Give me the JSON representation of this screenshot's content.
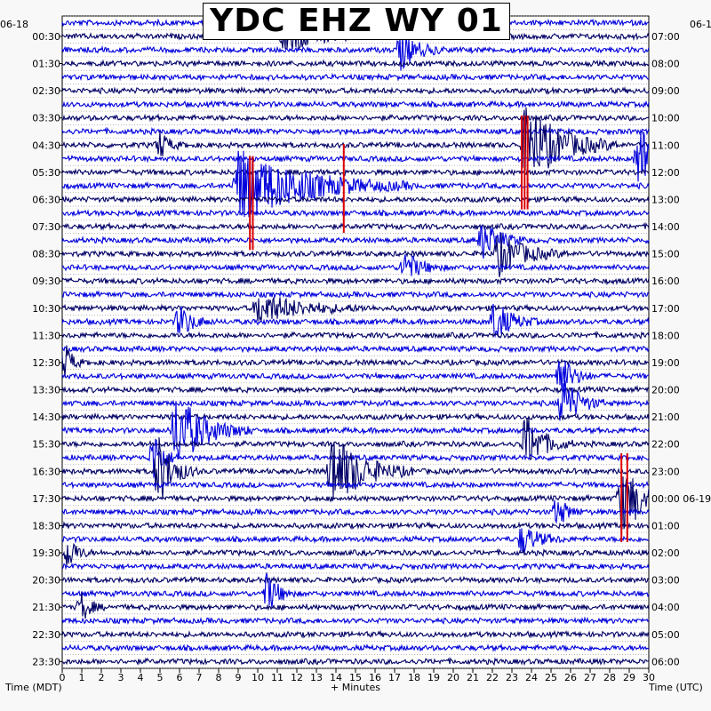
{
  "chart_data": {
    "type": "helicorder",
    "title": "YDC EHZ WY 01",
    "date_left": "06-18",
    "date_right": "06-1",
    "xlabel": "+ Minutes",
    "left_axis_label": "Time (MDT)",
    "right_axis_label": "Time (UTC)",
    "x_ticks": [
      "0",
      "1",
      "2",
      "3",
      "4",
      "5",
      "6",
      "7",
      "8",
      "9",
      "10",
      "11",
      "12",
      "13",
      "14",
      "15",
      "16",
      "17",
      "18",
      "19",
      "20",
      "21",
      "22",
      "23",
      "24",
      "25",
      "26",
      "27",
      "28",
      "29",
      "30"
    ],
    "xlim": [
      0,
      30
    ],
    "left_times": [
      "00:30",
      "01:30",
      "02:30",
      "03:30",
      "04:30",
      "05:30",
      "06:30",
      "07:30",
      "08:30",
      "09:30",
      "10:30",
      "11:30",
      "12:30",
      "13:30",
      "14:30",
      "15:30",
      "16:30",
      "17:30",
      "18:30",
      "19:30",
      "20:30",
      "21:30",
      "22:30",
      "23:30"
    ],
    "right_times": [
      "07:00",
      "08:00",
      "09:00",
      "10:00",
      "11:00",
      "12:00",
      "13:00",
      "14:00",
      "15:00",
      "16:00",
      "17:00",
      "18:00",
      "19:00",
      "20:00",
      "21:00",
      "22:00",
      "23:00",
      "00:00 06-19",
      "01:00",
      "02:00",
      "03:00",
      "04:00",
      "05:00",
      "06:00"
    ],
    "trace_count": 48,
    "minutes_per_trace": 30,
    "trace_colors": [
      "#0000dd",
      "#000066"
    ],
    "clip_color": "#dd0000",
    "grid": true,
    "events": [
      {
        "row": 1,
        "minute": 11.4,
        "amp": 2.0,
        "dur": 1.2
      },
      {
        "row": 2,
        "minute": 17.3,
        "amp": 1.6,
        "dur": 0.8
      },
      {
        "row": 9,
        "minute": 5.0,
        "amp": 1.2,
        "dur": 0.4
      },
      {
        "row": 9,
        "minute": 23.7,
        "amp": 3.5,
        "dur": 1.6
      },
      {
        "row": 10,
        "minute": 29.5,
        "amp": 3.0,
        "dur": 0.8
      },
      {
        "row": 12,
        "minute": 9.0,
        "amp": 3.2,
        "dur": 3.0
      },
      {
        "row": 16,
        "minute": 21.5,
        "amp": 1.6,
        "dur": 0.8
      },
      {
        "row": 17,
        "minute": 22.3,
        "amp": 1.8,
        "dur": 1.2
      },
      {
        "row": 18,
        "minute": 17.5,
        "amp": 1.4,
        "dur": 0.7
      },
      {
        "row": 21,
        "minute": 10.0,
        "amp": 1.3,
        "dur": 2.0
      },
      {
        "row": 22,
        "minute": 6.0,
        "amp": 1.4,
        "dur": 0.6
      },
      {
        "row": 22,
        "minute": 22.1,
        "amp": 1.7,
        "dur": 0.8
      },
      {
        "row": 25,
        "minute": 0.2,
        "amp": 1.5,
        "dur": 0.3
      },
      {
        "row": 26,
        "minute": 25.4,
        "amp": 2.0,
        "dur": 0.6
      },
      {
        "row": 28,
        "minute": 25.6,
        "amp": 2.4,
        "dur": 0.7
      },
      {
        "row": 30,
        "minute": 5.8,
        "amp": 3.2,
        "dur": 1.3
      },
      {
        "row": 31,
        "minute": 23.7,
        "amp": 2.5,
        "dur": 0.8
      },
      {
        "row": 32,
        "minute": 4.7,
        "amp": 2.5,
        "dur": 0.4
      },
      {
        "row": 33,
        "minute": 13.8,
        "amp": 3.3,
        "dur": 1.4
      },
      {
        "row": 33,
        "minute": 4.9,
        "amp": 3.0,
        "dur": 0.7
      },
      {
        "row": 35,
        "minute": 28.6,
        "amp": 2.8,
        "dur": 1.2
      },
      {
        "row": 36,
        "minute": 25.3,
        "amp": 1.3,
        "dur": 0.5
      },
      {
        "row": 38,
        "minute": 23.5,
        "amp": 1.2,
        "dur": 0.8
      },
      {
        "row": 39,
        "minute": 0.3,
        "amp": 1.5,
        "dur": 0.4
      },
      {
        "row": 42,
        "minute": 10.5,
        "amp": 1.8,
        "dur": 0.5
      },
      {
        "row": 43,
        "minute": 1.0,
        "amp": 1.2,
        "dur": 0.4
      }
    ],
    "clipped": [
      {
        "minute": 9.6,
        "y_top": 0.197,
        "y_bottom": 0.329
      },
      {
        "minute": 9.75,
        "y_top": 0.197,
        "y_bottom": 0.329
      },
      {
        "minute": 23.5,
        "y_top": 0.14,
        "y_bottom": 0.272
      },
      {
        "minute": 23.65,
        "y_top": 0.14,
        "y_bottom": 0.272
      },
      {
        "minute": 23.8,
        "y_top": 0.14,
        "y_bottom": 0.272
      },
      {
        "minute": 14.4,
        "y_top": 0.18,
        "y_bottom": 0.305
      },
      {
        "minute": 28.6,
        "y_top": 0.615,
        "y_bottom": 0.74
      },
      {
        "minute": 28.9,
        "y_top": 0.615,
        "y_bottom": 0.74
      }
    ]
  }
}
